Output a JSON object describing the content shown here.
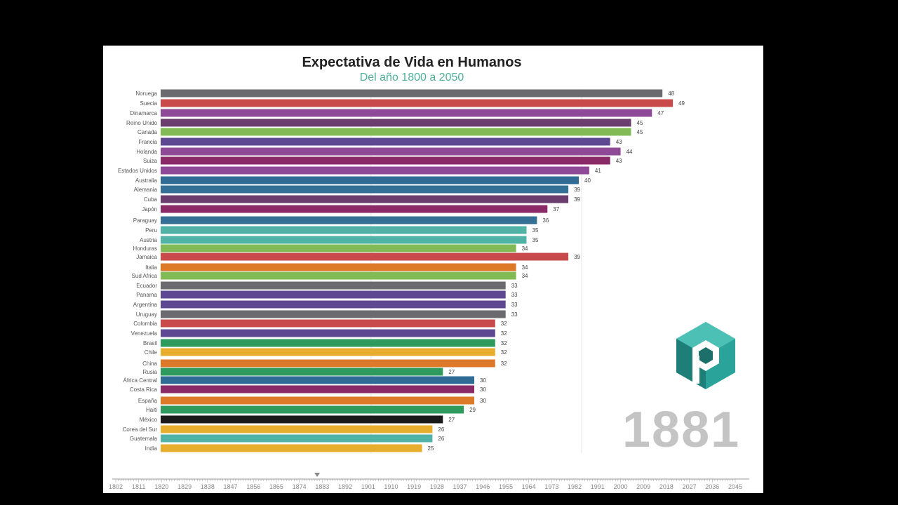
{
  "chart_data": {
    "type": "bar",
    "title": "Expectativa de Vida en Humanos",
    "subtitle": "Del año 1800 a 2050",
    "current_year": "1881",
    "xlim": [
      0,
      50
    ],
    "gridlines": [
      20,
      40
    ],
    "bars": [
      {
        "name": "Noruega",
        "value": 48,
        "color": "#6b6a6e"
      },
      {
        "name": "Suecia",
        "value": 49,
        "color": "#c94a4a"
      },
      {
        "name": "Dinamarca",
        "value": 47,
        "color": "#8e4a96"
      },
      {
        "name": "Reino Unido",
        "value": 45,
        "color": "#6a3d6e"
      },
      {
        "name": "Canada",
        "value": 45,
        "color": "#82bb55"
      },
      {
        "name": "Francia",
        "value": 43,
        "color": "#5e4891"
      },
      {
        "name": "Holanda",
        "value": 44,
        "color": "#8e4a96"
      },
      {
        "name": "Suiza",
        "value": 43,
        "color": "#8a2a66"
      },
      {
        "name": "Estados Unidos",
        "value": 41,
        "color": "#8e4a96"
      },
      {
        "name": "Australia",
        "value": 40,
        "color": "#2f6b93"
      },
      {
        "name": "Alemania",
        "value": 39,
        "color": "#346f95"
      },
      {
        "name": "Cuba",
        "value": 39,
        "color": "#6a3d6e"
      },
      {
        "name": "Japón",
        "value": 37,
        "color": "#8a2a66"
      },
      {
        "name": "Paraguay",
        "value": 36,
        "color": "#346f95"
      },
      {
        "name": "Peru",
        "value": 35,
        "color": "#50b3a6"
      },
      {
        "name": "Austria",
        "value": 35,
        "color": "#50b3a6"
      },
      {
        "name": "Honduras",
        "value": 34,
        "color": "#82bb55"
      },
      {
        "name": "Jamaica",
        "value": 39,
        "color": "#c94a4a"
      },
      {
        "name": "Italia",
        "value": 34,
        "color": "#dd7a2a"
      },
      {
        "name": "Sud Africa",
        "value": 34,
        "color": "#82bb55"
      },
      {
        "name": "Ecuador",
        "value": 33,
        "color": "#6b6a6e"
      },
      {
        "name": "Panama",
        "value": 33,
        "color": "#5e4891"
      },
      {
        "name": "Argentina",
        "value": 33,
        "color": "#5e4891"
      },
      {
        "name": "Uruguay",
        "value": 33,
        "color": "#6b6a6e"
      },
      {
        "name": "Colombia",
        "value": 32,
        "color": "#c94a4a"
      },
      {
        "name": "Venezuela",
        "value": 32,
        "color": "#5e4891"
      },
      {
        "name": "Brasil",
        "value": 32,
        "color": "#2e9a5e"
      },
      {
        "name": "Chile",
        "value": 32,
        "color": "#e7ae2d"
      },
      {
        "name": "China",
        "value": 32,
        "color": "#dd7a2a"
      },
      {
        "name": "Rusia",
        "value": 27,
        "color": "#2e9a5e"
      },
      {
        "name": "África Central",
        "value": 30,
        "color": "#2f6b93"
      },
      {
        "name": "Costa Rica",
        "value": 30,
        "color": "#8a2a66"
      },
      {
        "name": "España",
        "value": 30,
        "color": "#dd7a2a"
      },
      {
        "name": "Haiti",
        "value": 29,
        "color": "#2e9a5e"
      },
      {
        "name": "México",
        "value": 27,
        "color": "#1a1a1a"
      },
      {
        "name": "Corea del Sur",
        "value": 26,
        "color": "#e7ae2d"
      },
      {
        "name": "Guatemala",
        "value": 26,
        "color": "#50b3a6"
      },
      {
        "name": "India",
        "value": 25,
        "color": "#e7ae2d"
      }
    ],
    "timeline": {
      "start": 1802,
      "step": 9,
      "end": 2045,
      "marker_year": 1881
    }
  },
  "colors": {
    "logo": "#2aa39a",
    "logo_dark": "#1d6f6a",
    "year": "#c4c4c4"
  }
}
